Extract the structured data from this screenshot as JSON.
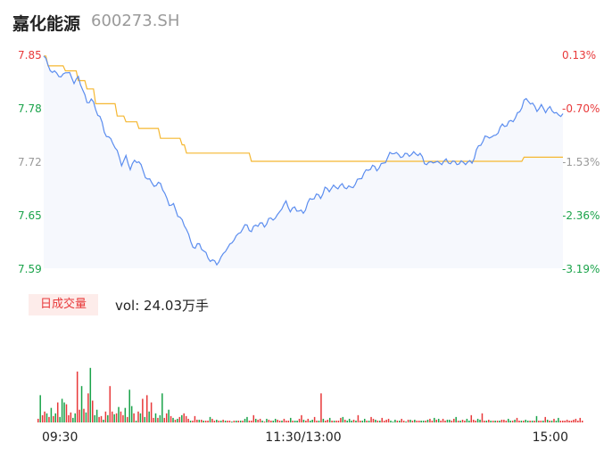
{
  "header": {
    "name": "嘉化能源",
    "code": "600273.SH"
  },
  "colors": {
    "up": "#e8393a",
    "down": "#1aa34a",
    "neutral": "#999999",
    "price_line": "#5b8def",
    "avg_line": "#f5b730",
    "area": "#f6f8fd"
  },
  "volume_panel": {
    "tag": "日成交量",
    "text": "vol: 24.03万手"
  },
  "chart_data": {
    "type": "line",
    "prev_close": 7.84,
    "ylim": [
      7.59,
      7.85
    ],
    "price_ticks": [
      "7.85",
      "7.78",
      "7.72",
      "7.65",
      "7.59"
    ],
    "pct_ticks": [
      "0.13%",
      "-0.70%",
      "-1.53%",
      "-2.36%",
      "-3.19%"
    ],
    "x_labels": [
      "09:30",
      "11:30/13:00",
      "15:00"
    ],
    "n_points": 241,
    "price_knots": [
      [
        0,
        7.848
      ],
      [
        2,
        7.836
      ],
      [
        4,
        7.826
      ],
      [
        6,
        7.83
      ],
      [
        8,
        7.822
      ],
      [
        10,
        7.83
      ],
      [
        12,
        7.824
      ],
      [
        14,
        7.816
      ],
      [
        16,
        7.822
      ],
      [
        18,
        7.81
      ],
      [
        20,
        7.79
      ],
      [
        22,
        7.795
      ],
      [
        24,
        7.782
      ],
      [
        26,
        7.775
      ],
      [
        28,
        7.758
      ],
      [
        30,
        7.748
      ],
      [
        32,
        7.742
      ],
      [
        34,
        7.73
      ],
      [
        36,
        7.718
      ],
      [
        38,
        7.726
      ],
      [
        40,
        7.712
      ],
      [
        42,
        7.718
      ],
      [
        44,
        7.72
      ],
      [
        46,
        7.708
      ],
      [
        48,
        7.7
      ],
      [
        50,
        7.694
      ],
      [
        52,
        7.688
      ],
      [
        54,
        7.694
      ],
      [
        56,
        7.68
      ],
      [
        58,
        7.67
      ],
      [
        60,
        7.666
      ],
      [
        62,
        7.654
      ],
      [
        64,
        7.646
      ],
      [
        66,
        7.64
      ],
      [
        68,
        7.622
      ],
      [
        70,
        7.615
      ],
      [
        72,
        7.618
      ],
      [
        74,
        7.61
      ],
      [
        76,
        7.604
      ],
      [
        78,
        7.6
      ],
      [
        80,
        7.596
      ],
      [
        82,
        7.6
      ],
      [
        84,
        7.612
      ],
      [
        86,
        7.618
      ],
      [
        88,
        7.628
      ],
      [
        90,
        7.63
      ],
      [
        92,
        7.638
      ],
      [
        94,
        7.641
      ],
      [
        96,
        7.636
      ],
      [
        98,
        7.644
      ],
      [
        100,
        7.644
      ],
      [
        102,
        7.64
      ],
      [
        104,
        7.648
      ],
      [
        106,
        7.652
      ],
      [
        108,
        7.654
      ],
      [
        110,
        7.664
      ],
      [
        112,
        7.668
      ],
      [
        114,
        7.66
      ],
      [
        116,
        7.664
      ],
      [
        118,
        7.662
      ],
      [
        120,
        7.656
      ],
      [
        122,
        7.668
      ],
      [
        124,
        7.674
      ],
      [
        126,
        7.68
      ],
      [
        128,
        7.678
      ],
      [
        130,
        7.686
      ],
      [
        132,
        7.684
      ],
      [
        134,
        7.688
      ],
      [
        136,
        7.69
      ],
      [
        138,
        7.692
      ],
      [
        140,
        7.688
      ],
      [
        142,
        7.686
      ],
      [
        144,
        7.692
      ],
      [
        146,
        7.7
      ],
      [
        148,
        7.706
      ],
      [
        150,
        7.71
      ],
      [
        152,
        7.712
      ],
      [
        154,
        7.71
      ],
      [
        156,
        7.716
      ],
      [
        158,
        7.722
      ],
      [
        160,
        7.728
      ],
      [
        162,
        7.73
      ],
      [
        164,
        7.726
      ],
      [
        166,
        7.728
      ],
      [
        168,
        7.73
      ],
      [
        170,
        7.728
      ],
      [
        172,
        7.728
      ],
      [
        174,
        7.728
      ],
      [
        176,
        7.72
      ],
      [
        178,
        7.718
      ],
      [
        180,
        7.72
      ],
      [
        182,
        7.716
      ],
      [
        184,
        7.718
      ],
      [
        186,
        7.722
      ],
      [
        188,
        7.72
      ],
      [
        190,
        7.718
      ],
      [
        192,
        7.716
      ],
      [
        194,
        7.718
      ],
      [
        196,
        7.72
      ],
      [
        198,
        7.72
      ],
      [
        200,
        7.732
      ],
      [
        202,
        7.74
      ],
      [
        204,
        7.748
      ],
      [
        206,
        7.752
      ],
      [
        208,
        7.75
      ],
      [
        210,
        7.756
      ],
      [
        212,
        7.762
      ],
      [
        214,
        7.764
      ],
      [
        216,
        7.77
      ],
      [
        218,
        7.774
      ],
      [
        220,
        7.78
      ],
      [
        222,
        7.792
      ],
      [
        224,
        7.794
      ],
      [
        226,
        7.79
      ],
      [
        228,
        7.784
      ],
      [
        230,
        7.786
      ],
      [
        232,
        7.78
      ],
      [
        234,
        7.784
      ],
      [
        236,
        7.782
      ],
      [
        238,
        7.776
      ],
      [
        240,
        7.778
      ]
    ],
    "avg_knots": [
      [
        0,
        7.848
      ],
      [
        2,
        7.836
      ],
      [
        6,
        7.836
      ],
      [
        10,
        7.83
      ],
      [
        16,
        7.818
      ],
      [
        20,
        7.808
      ],
      [
        24,
        7.79
      ],
      [
        34,
        7.775
      ],
      [
        38,
        7.768
      ],
      [
        44,
        7.76
      ],
      [
        54,
        7.748
      ],
      [
        64,
        7.74
      ],
      [
        66,
        7.73
      ],
      [
        94,
        7.73
      ],
      [
        96,
        7.72
      ],
      [
        100,
        7.72
      ],
      [
        152,
        7.72
      ],
      [
        156,
        7.72
      ],
      [
        220,
        7.72
      ],
      [
        222,
        7.725
      ],
      [
        240,
        7.725
      ]
    ],
    "volume_ylim": [
      0,
      100
    ],
    "volumes": [
      4,
      30,
      8,
      12,
      10,
      6,
      16,
      7,
      10,
      22,
      6,
      26,
      22,
      20,
      8,
      11,
      5,
      10,
      56,
      14,
      40,
      15,
      11,
      32,
      60,
      24,
      8,
      14,
      6,
      7,
      3,
      12,
      8,
      40,
      12,
      9,
      10,
      17,
      12,
      8,
      16,
      6,
      36,
      18,
      10,
      2,
      12,
      10,
      26,
      6,
      30,
      12,
      22,
      5,
      10,
      5,
      8,
      32,
      5,
      10,
      14,
      7,
      5,
      3,
      4,
      6,
      8,
      10,
      7,
      4,
      2,
      2,
      7,
      3,
      3,
      3,
      2,
      2,
      2,
      6,
      4,
      2,
      3,
      2,
      2,
      3,
      2,
      2,
      2,
      1,
      2,
      2,
      2,
      2,
      2,
      4,
      6,
      2,
      2,
      8,
      4,
      3,
      4,
      2,
      1,
      4,
      3,
      2,
      2,
      4,
      3,
      2,
      2,
      4,
      2,
      2,
      5,
      2,
      2,
      2,
      4,
      8,
      3,
      2,
      4,
      2,
      3,
      6,
      2,
      2,
      32,
      4,
      2,
      3,
      5,
      2,
      2,
      2,
      2,
      5,
      6,
      3,
      2,
      4,
      2,
      3,
      2,
      8,
      2,
      2,
      4,
      2,
      2,
      6,
      4,
      3,
      2,
      2,
      5,
      2,
      3,
      4,
      2,
      1,
      3,
      2,
      2,
      4,
      2,
      1,
      3,
      3,
      2,
      3,
      2,
      2,
      2,
      2,
      2,
      3,
      4,
      2,
      5,
      3,
      4,
      2,
      4,
      2,
      3,
      3,
      2,
      4,
      6,
      2,
      2,
      3,
      2,
      4,
      2,
      8,
      3,
      2,
      4,
      3,
      10,
      2,
      2,
      3,
      2,
      2,
      2,
      2,
      2,
      3,
      3,
      2,
      4,
      2,
      2,
      3,
      5,
      2,
      2,
      2,
      3,
      2,
      2,
      2,
      2,
      7,
      2,
      2,
      2,
      6,
      3,
      2,
      2,
      4,
      2,
      5,
      2,
      2,
      2,
      3,
      2,
      2,
      3,
      4,
      2,
      5,
      2
    ],
    "volume_colors": "rgrrgrgrgrgggrrrggrrgrgrgrggrrgrgrrgrgrrgrggrgrgrgrgrrgrggrrgrgrgrgrrrgrrrgrgrrgrrgrgrgrrgrgrgrggrrrgrrgrgrrggrrgrrrgrggrrgrrggrrgrgrrgrgrrrgrgggrgrrggrgrrgrgrrrrgggrgrrgrgrgrrggrgrrgrgrrrggrrgrgrrggrrrggrrgrgrgrgrrrggrgrrgrggrgrgrrgrgrgrgg"
  }
}
